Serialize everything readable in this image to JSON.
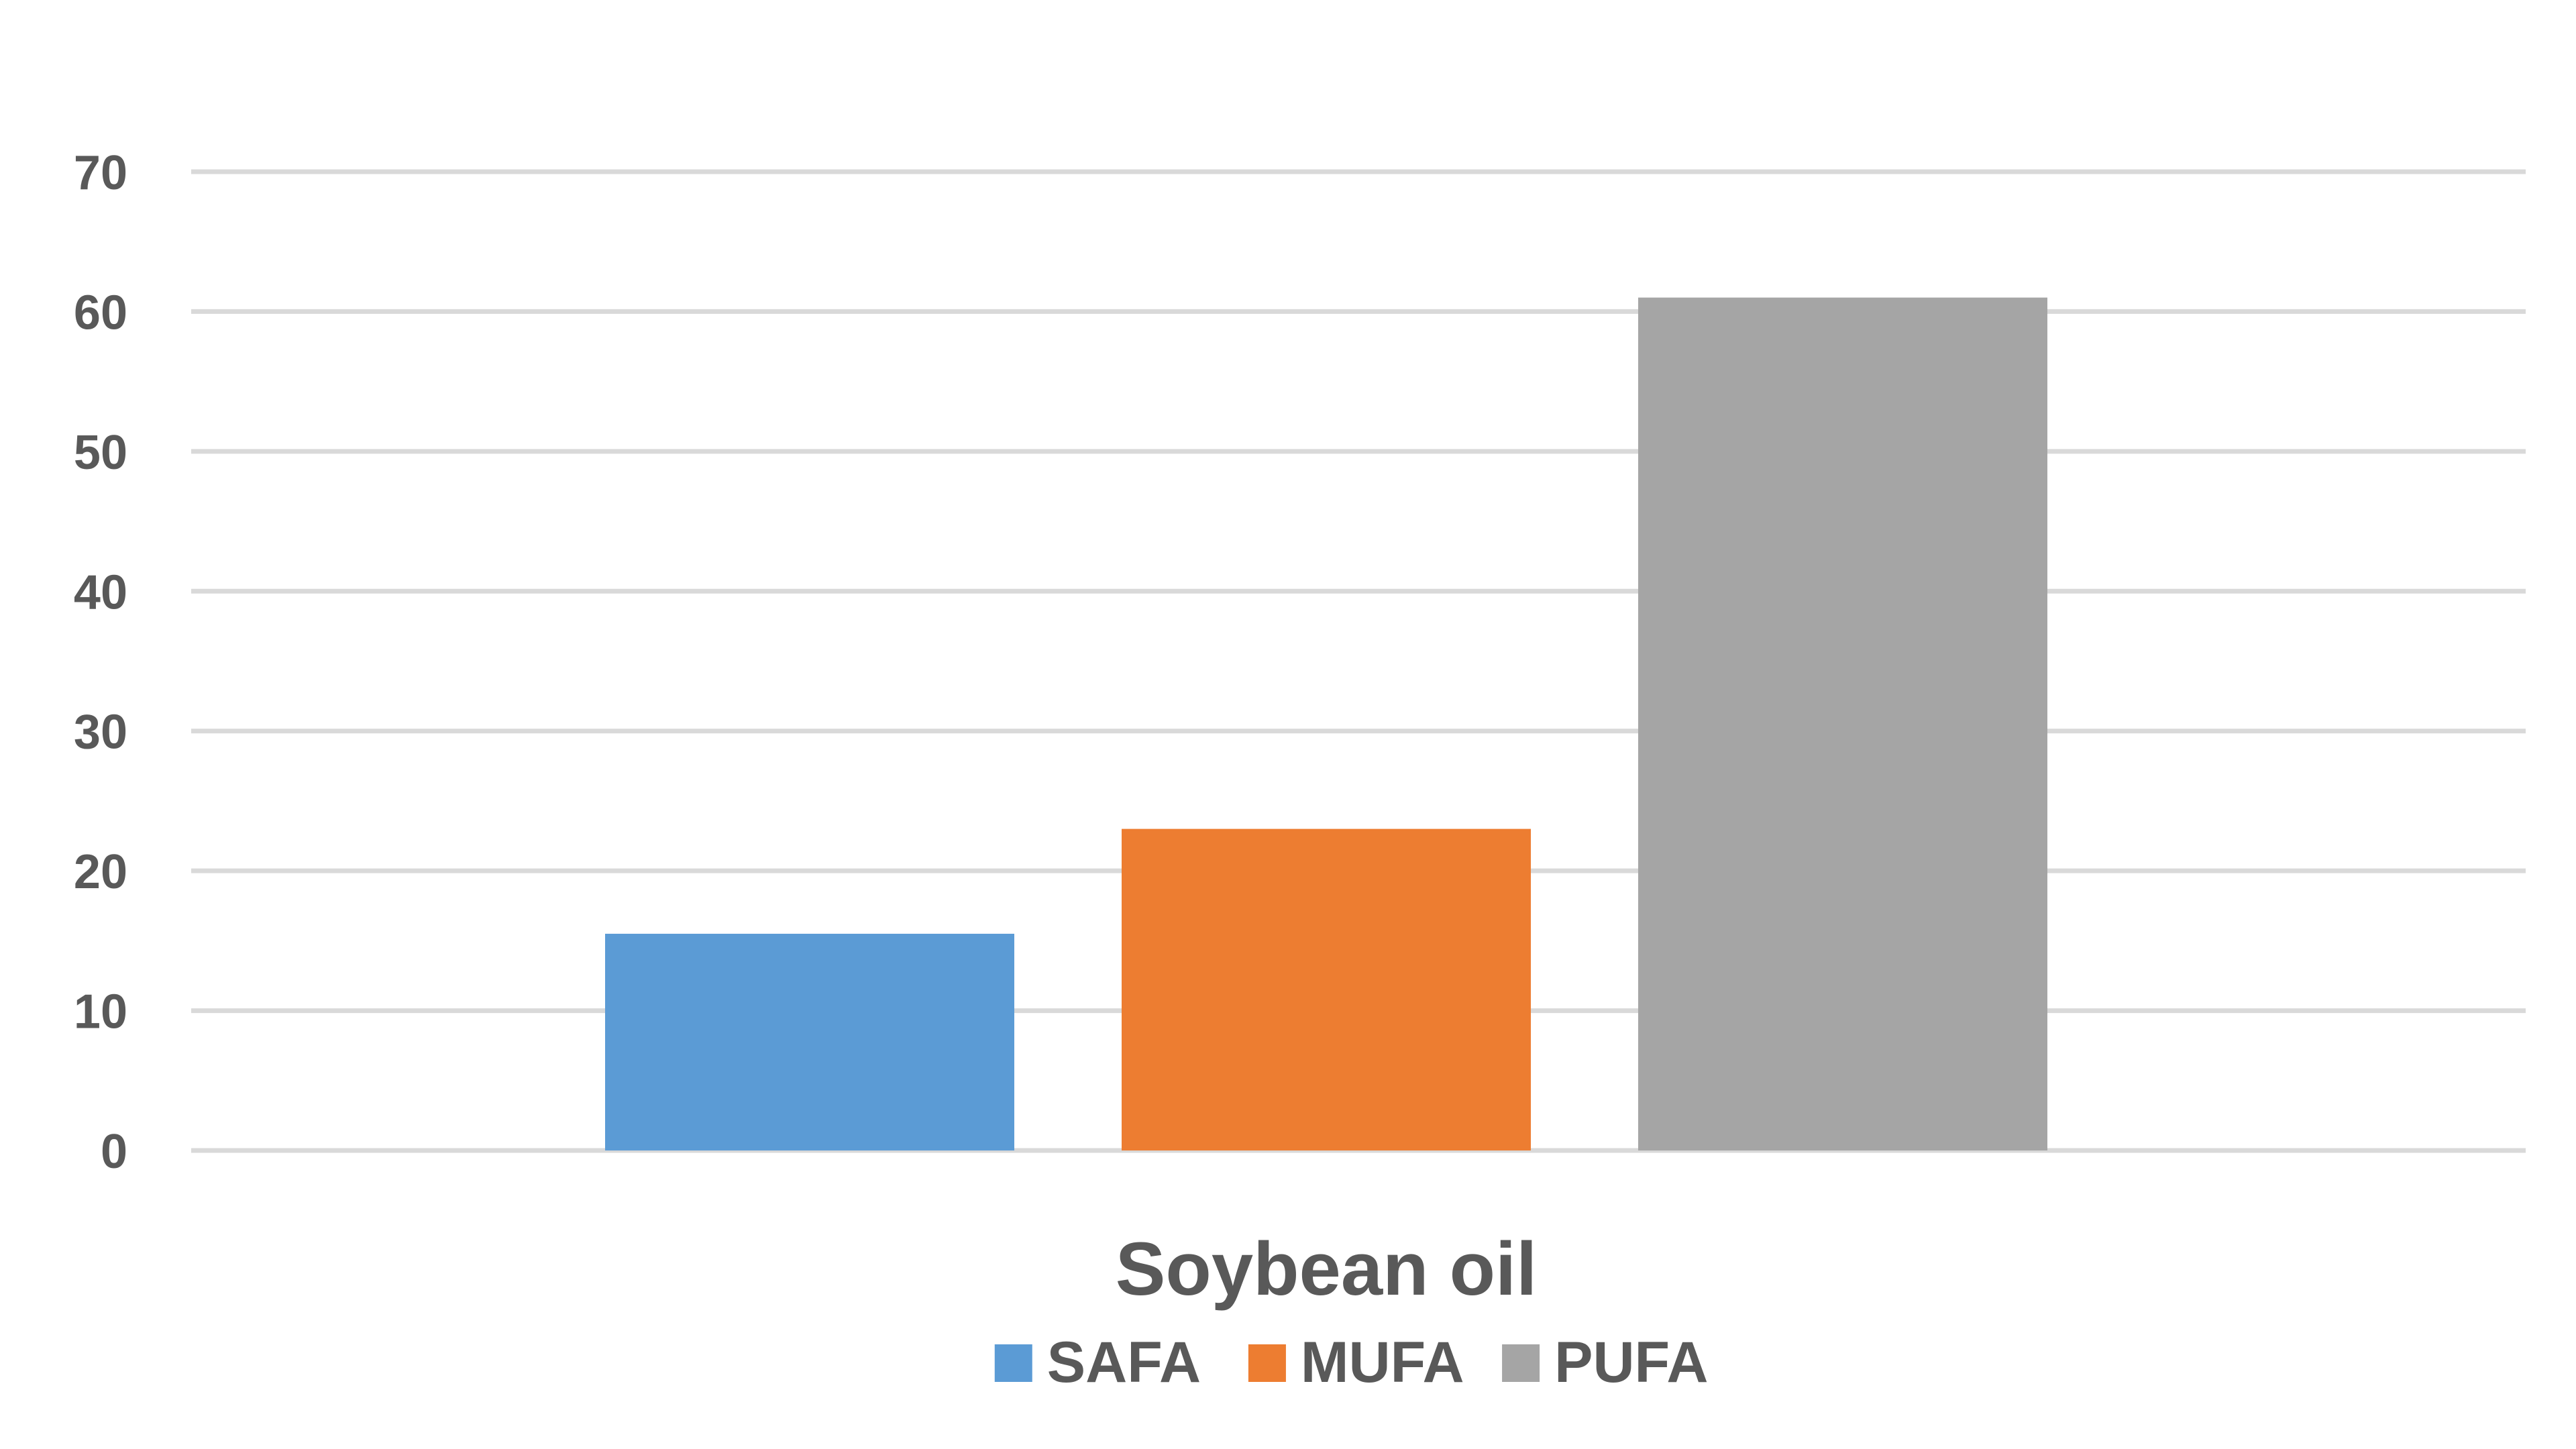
{
  "chart_data": {
    "type": "bar",
    "categories": [
      "Soybean oil"
    ],
    "series": [
      {
        "name": "SAFA",
        "values": [
          15.5
        ],
        "color": "#5b9bd5"
      },
      {
        "name": "MUFA",
        "values": [
          23
        ],
        "color": "#ed7d31"
      },
      {
        "name": "PUFA",
        "values": [
          61
        ],
        "color": "#a5a5a5"
      }
    ],
    "ylim": [
      0,
      70
    ],
    "yticks": [
      0,
      10,
      20,
      30,
      40,
      50,
      60,
      70
    ],
    "title": "",
    "xlabel": "",
    "ylabel": "",
    "grid": "horizontal",
    "legend_position": "bottom",
    "gridline_color": "#d9d9d9",
    "text_color": "#595959"
  }
}
